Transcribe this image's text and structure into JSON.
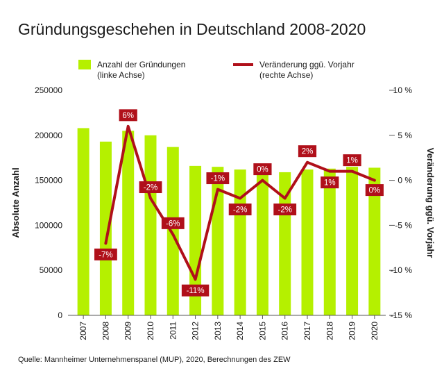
{
  "chart_data": {
    "type": "bar",
    "title": "Gründungsgeschehen in Deutschland 2008-2020",
    "categories": [
      "2007",
      "2008",
      "2009",
      "2010",
      "2011",
      "2012",
      "2013",
      "2014",
      "2015",
      "2016",
      "2017",
      "2018",
      "2019",
      "2020"
    ],
    "series": [
      {
        "name": "Anzahl der Gründungen",
        "name_line2": "(linke Achse)",
        "type": "bar",
        "axis": "left",
        "color": "#b5f000",
        "values": [
          208000,
          193000,
          205000,
          200000,
          187000,
          166000,
          165000,
          162000,
          163000,
          159000,
          162000,
          163000,
          165000,
          164000
        ]
      },
      {
        "name": "Veränderung ggü. Vorjahr",
        "name_line2": "(rechte Achse)",
        "type": "line",
        "axis": "right",
        "color": "#b0101a",
        "values": [
          null,
          -7,
          6,
          -2,
          -6,
          -11,
          -1,
          -2,
          0,
          -2,
          2,
          1,
          1,
          0
        ],
        "labels": [
          "",
          "-7%",
          "6%",
          "-2%",
          "-6%",
          "-11%",
          "-1%",
          "-2%",
          "0%",
          "-2%",
          "2%",
          "1%",
          "1%",
          "0%"
        ]
      }
    ],
    "ylabel": "Absolute Anzahl",
    "ylabel_right": "Veränderung ggü. Vorjahr",
    "ylim": [
      0,
      250000
    ],
    "ylim_right": [
      -15,
      10
    ],
    "yticks": [
      0,
      50000,
      100000,
      150000,
      200000,
      250000
    ],
    "yticks_labels": [
      "0",
      "50000",
      "100000",
      "150000",
      "200000",
      "250000"
    ],
    "yticks_right": [
      10,
      5,
      0,
      -5,
      -10,
      -15
    ],
    "yticks_right_labels": [
      "10 %",
      "5 %",
      "0 %",
      "-5 %",
      "-10 %",
      "-15 %"
    ],
    "grid": false,
    "legend": "top",
    "source": "Quelle: Mannheimer Unternehmenspanel (MUP), 2020, Berechnungen des ZEW"
  }
}
